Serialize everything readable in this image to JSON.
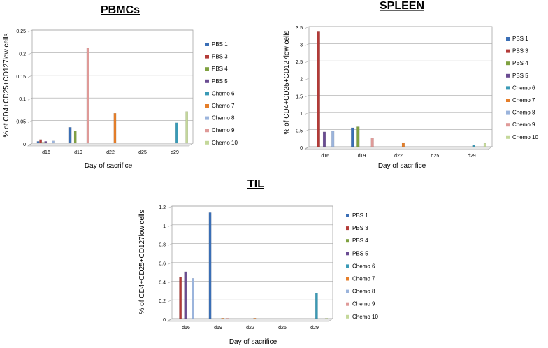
{
  "figure": {
    "series_colors": [
      "#3b6fb6",
      "#b33b38",
      "#7fa140",
      "#6a4c92",
      "#3a9ab6",
      "#e57e2a",
      "#9bb4dc",
      "#df9a98",
      "#c4d89a"
    ]
  },
  "chart_data": [
    {
      "type": "bar",
      "title": "PBMCs",
      "xlabel": "Day of sacrifice",
      "ylabel": "% of CD4+CD25+CD127low cells",
      "ylim": [
        0,
        0.25
      ],
      "yticks": [
        "0",
        "0.05",
        "0.1",
        "0.15",
        "0.2",
        "0.25"
      ],
      "ytick_values": [
        0,
        0.05,
        0.1,
        0.15,
        0.2,
        0.25
      ],
      "categories": [
        "d16",
        "d19",
        "d22",
        "d25",
        "d29"
      ],
      "legend_position": "right",
      "series": [
        {
          "name": "PBS 1",
          "values": [
            0.004,
            0.035,
            0,
            0,
            0
          ]
        },
        {
          "name": "PBS 3",
          "values": [
            0.008,
            0,
            0,
            0,
            0
          ]
        },
        {
          "name": "PBS 4",
          "values": [
            0.002,
            0.027,
            0,
            0,
            0
          ]
        },
        {
          "name": "PBS 5",
          "values": [
            0.004,
            0,
            0,
            0,
            0
          ]
        },
        {
          "name": "Chemo 6",
          "values": [
            0,
            0,
            0,
            0,
            0.045
          ]
        },
        {
          "name": "Chemo 7",
          "values": [
            0,
            0,
            0.066,
            0,
            0
          ]
        },
        {
          "name": "Chemo 8",
          "values": [
            0.005,
            0,
            0,
            0,
            0
          ]
        },
        {
          "name": "Chemo 9",
          "values": [
            0,
            0.21,
            0,
            0,
            0
          ]
        },
        {
          "name": "Chemo 10",
          "values": [
            0,
            0,
            0,
            0,
            0.07
          ]
        }
      ]
    },
    {
      "type": "bar",
      "title": "SPLEEN",
      "xlabel": "Day of sacrifice",
      "ylabel": "% of CD4+CD25+CD127low cells",
      "ylim": [
        0,
        3.5
      ],
      "yticks": [
        "0",
        "0.5",
        "1",
        "1.5",
        "2",
        "2.5",
        "3",
        "3.5"
      ],
      "ytick_values": [
        0,
        0.5,
        1,
        1.5,
        2,
        2.5,
        3,
        3.5
      ],
      "categories": [
        "d16",
        "d19",
        "d22",
        "d25",
        "d29"
      ],
      "legend_position": "right",
      "series": [
        {
          "name": "PBS 1",
          "values": [
            0,
            0.55,
            0,
            0,
            0
          ]
        },
        {
          "name": "PBS 3",
          "values": [
            3.35,
            0,
            0,
            0,
            0
          ]
        },
        {
          "name": "PBS 4",
          "values": [
            0,
            0.58,
            0,
            0,
            0
          ]
        },
        {
          "name": "PBS 5",
          "values": [
            0.43,
            0,
            0,
            0,
            0
          ]
        },
        {
          "name": "Chemo 6",
          "values": [
            0,
            0,
            0,
            0,
            0.04
          ]
        },
        {
          "name": "Chemo 7",
          "values": [
            0,
            0,
            0.12,
            0,
            0
          ]
        },
        {
          "name": "Chemo 8",
          "values": [
            0.45,
            0,
            0,
            0,
            0
          ]
        },
        {
          "name": "Chemo 9",
          "values": [
            0,
            0.25,
            0,
            0,
            0
          ]
        },
        {
          "name": "Chemo 10",
          "values": [
            0,
            0,
            0,
            0,
            0.1
          ]
        }
      ]
    },
    {
      "type": "bar",
      "title": "TIL",
      "xlabel": "Day of sacrifice",
      "ylabel": "% of CD4+CD25+CD127low cells",
      "ylim": [
        0,
        1.2
      ],
      "yticks": [
        "0",
        "0.2",
        "0.4",
        "0.6",
        "0.8",
        "1",
        "1.2"
      ],
      "ytick_values": [
        0,
        0.2,
        0.4,
        0.6,
        0.8,
        1,
        1.2
      ],
      "categories": [
        "d16",
        "d19",
        "d22",
        "d25",
        "d29"
      ],
      "legend_position": "right",
      "series": [
        {
          "name": "PBS 1",
          "values": [
            0,
            1.13,
            0,
            0,
            0
          ]
        },
        {
          "name": "PBS 3",
          "values": [
            0.44,
            0,
            0,
            0,
            0
          ]
        },
        {
          "name": "PBS 4",
          "values": [
            0,
            0,
            0,
            0,
            0
          ]
        },
        {
          "name": "PBS 5",
          "values": [
            0.5,
            0,
            0,
            0,
            0
          ]
        },
        {
          "name": "Chemo 6",
          "values": [
            0,
            0,
            0,
            0,
            0.27
          ]
        },
        {
          "name": "Chemo 7",
          "values": [
            0,
            0.005,
            0.005,
            0,
            0
          ]
        },
        {
          "name": "Chemo 8",
          "values": [
            0.43,
            0,
            0,
            0,
            0
          ]
        },
        {
          "name": "Chemo 9",
          "values": [
            0,
            0.004,
            0,
            0,
            0
          ]
        },
        {
          "name": "Chemo 10",
          "values": [
            0,
            0,
            0,
            0,
            0.005
          ]
        }
      ]
    }
  ]
}
